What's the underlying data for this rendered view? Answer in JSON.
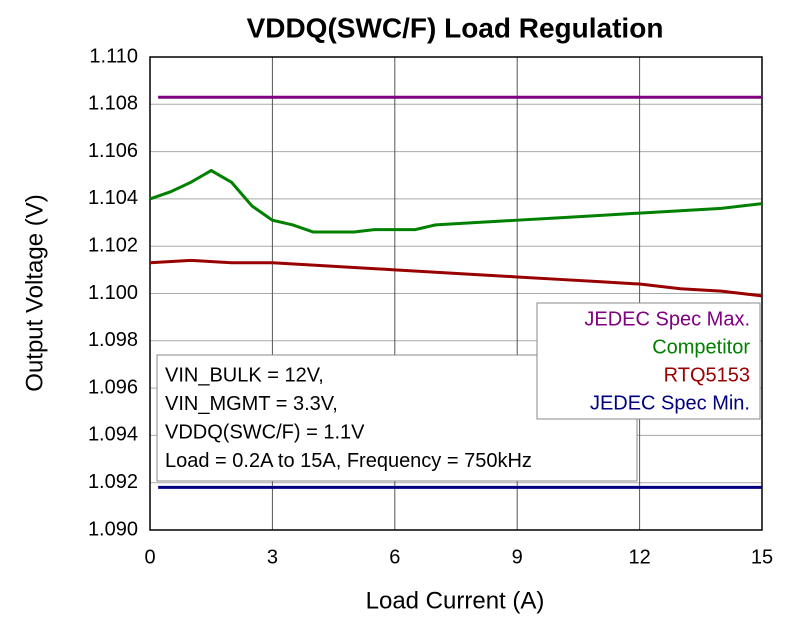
{
  "chart_data": {
    "type": "line",
    "title": "VDDQ(SWC/F) Load Regulation",
    "xlabel": "Load Current (A)",
    "ylabel": "Output Voltage (V)",
    "xlim": [
      0,
      15
    ],
    "xticks": [
      0,
      3,
      6,
      9,
      12,
      15
    ],
    "ylim": [
      1.09,
      1.11
    ],
    "yticks": [
      {
        "value": 1.09,
        "label": "1.090"
      },
      {
        "value": 1.092,
        "label": "1.092"
      },
      {
        "value": 1.094,
        "label": "1.094"
      },
      {
        "value": 1.096,
        "label": "1.096"
      },
      {
        "value": 1.098,
        "label": "1.098"
      },
      {
        "value": 1.1,
        "label": "1.100"
      },
      {
        "value": 1.102,
        "label": "1.102"
      },
      {
        "value": 1.104,
        "label": "1.104"
      },
      {
        "value": 1.106,
        "label": "1.106"
      },
      {
        "value": 1.108,
        "label": "1.108"
      },
      {
        "value": 1.11,
        "label": "1.110"
      }
    ],
    "grid": true,
    "series": [
      {
        "name": "JEDEC Spec Max.",
        "color": "#800080",
        "x": [
          0.2,
          15
        ],
        "values": [
          1.1083,
          1.1083
        ]
      },
      {
        "name": "Competitor",
        "color": "#008000",
        "x": [
          0,
          0.5,
          1,
          1.3,
          1.5,
          2,
          2.5,
          3,
          3.5,
          4,
          5,
          5.5,
          6,
          6.5,
          7,
          8,
          9,
          10,
          11,
          12,
          13,
          14,
          15
        ],
        "values": [
          1.104,
          1.1043,
          1.1047,
          1.105,
          1.1052,
          1.1047,
          1.1037,
          1.1031,
          1.1029,
          1.1026,
          1.1026,
          1.1027,
          1.1027,
          1.1027,
          1.1029,
          1.103,
          1.1031,
          1.1032,
          1.1033,
          1.1034,
          1.1035,
          1.1036,
          1.1038
        ]
      },
      {
        "name": "RTQ5153",
        "color": "#990000",
        "x": [
          0,
          1,
          2,
          3,
          4,
          5,
          6,
          7,
          8,
          9,
          10,
          11,
          12,
          13,
          14,
          15
        ],
        "values": [
          1.1013,
          1.1014,
          1.1013,
          1.1013,
          1.1012,
          1.1011,
          1.101,
          1.1009,
          1.1008,
          1.1007,
          1.1006,
          1.1005,
          1.1004,
          1.1002,
          1.1001,
          1.0999
        ]
      },
      {
        "name": "JEDEC Spec Min.",
        "color": "#000080",
        "x": [
          0.2,
          15
        ],
        "values": [
          1.0918,
          1.0918
        ]
      }
    ],
    "annotation": [
      "VIN_BULK = 12V,",
      "VIN_MGMT = 3.3V,",
      "VDDQ(SWC/F) = 1.1V",
      "Load = 0.2A to 15A, Frequency = 750kHz"
    ]
  }
}
